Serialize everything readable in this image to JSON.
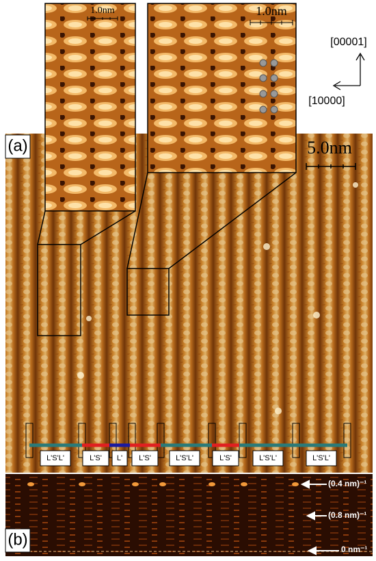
{
  "panels": {
    "a": "(a)",
    "b": "(b)"
  },
  "insets": {
    "left_scale": "1.0nm",
    "right_scale": "1.0nm"
  },
  "main_scale": "5.0nm",
  "directions": {
    "vertical": "[00001]",
    "horizontal": "[10000]"
  },
  "segment_labels": [
    "L'S'L'",
    "L'S'",
    "L'",
    "L'S'",
    "L'S'L'",
    "L'S'",
    "L'S'L'",
    "L'S'L'"
  ],
  "fft_labels": [
    "(0.4 nm)⁻¹",
    "(0.8 nm)⁻¹",
    "0 nm⁻¹"
  ]
}
